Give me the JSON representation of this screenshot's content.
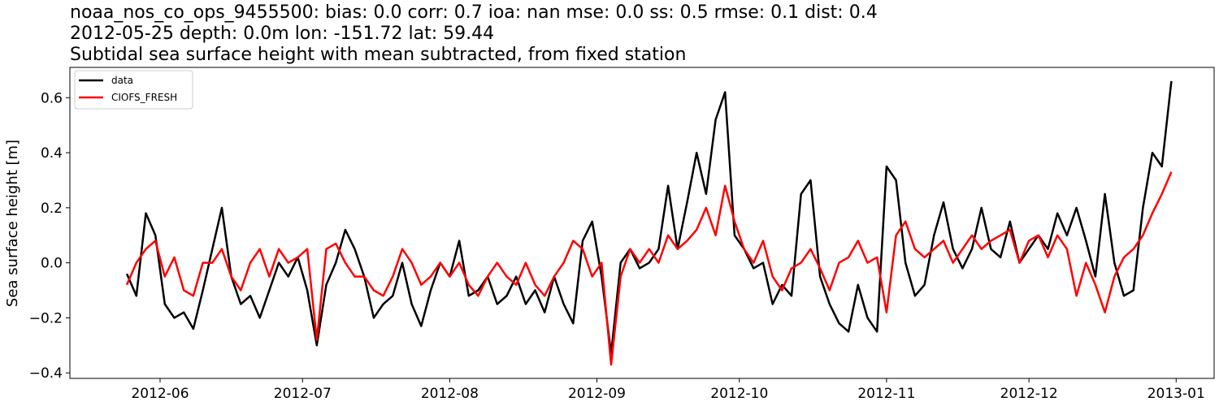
{
  "chart_data": {
    "type": "line",
    "title": [
      "noaa_nos_co_ops_9455500: bias: 0.0  corr: 0.7  ioa: nan  mse: 0.0  ss: 0.5  rmse: 0.1  dist: 0.4",
      "2012-05-25 depth: 0.0m lon: -151.72 lat: 59.44",
      "Subtidal sea surface height with mean subtracted, from fixed station"
    ],
    "xlabel": "",
    "ylabel": "Sea surface height [m]",
    "xlim": [
      "2012-05-13",
      "2013-01-09"
    ],
    "ylim": [
      -0.42,
      0.71
    ],
    "xticks": [
      "2012-06",
      "2012-07",
      "2012-08",
      "2012-09",
      "2012-10",
      "2012-11",
      "2012-12",
      "2013-01"
    ],
    "yticks": [
      -0.4,
      -0.2,
      0.0,
      0.2,
      0.4,
      0.6
    ],
    "ytick_labels": [
      "−0.4",
      "−0.2",
      "0.0",
      "0.2",
      "0.4",
      "0.6"
    ],
    "grid": false,
    "legend": "top-left",
    "series": [
      {
        "name": "data",
        "color": "#000000",
        "x": [
          "2012-05-25",
          "2012-05-27",
          "2012-05-29",
          "2012-05-31",
          "2012-06-02",
          "2012-06-04",
          "2012-06-06",
          "2012-06-08",
          "2012-06-10",
          "2012-06-12",
          "2012-06-14",
          "2012-06-16",
          "2012-06-18",
          "2012-06-20",
          "2012-06-22",
          "2012-06-24",
          "2012-06-26",
          "2012-06-28",
          "2012-06-30",
          "2012-07-02",
          "2012-07-04",
          "2012-07-06",
          "2012-07-08",
          "2012-07-10",
          "2012-07-12",
          "2012-07-14",
          "2012-07-16",
          "2012-07-18",
          "2012-07-20",
          "2012-07-22",
          "2012-07-24",
          "2012-07-26",
          "2012-07-28",
          "2012-07-30",
          "2012-08-01",
          "2012-08-03",
          "2012-08-05",
          "2012-08-07",
          "2012-08-09",
          "2012-08-11",
          "2012-08-13",
          "2012-08-15",
          "2012-08-17",
          "2012-08-19",
          "2012-08-21",
          "2012-08-23",
          "2012-08-25",
          "2012-08-27",
          "2012-08-29",
          "2012-08-31",
          "2012-09-02",
          "2012-09-04",
          "2012-09-06",
          "2012-09-08",
          "2012-09-10",
          "2012-09-12",
          "2012-09-14",
          "2012-09-16",
          "2012-09-18",
          "2012-09-20",
          "2012-09-22",
          "2012-09-24",
          "2012-09-26",
          "2012-09-28",
          "2012-09-30",
          "2012-10-02",
          "2012-10-04",
          "2012-10-06",
          "2012-10-08",
          "2012-10-10",
          "2012-10-12",
          "2012-10-14",
          "2012-10-16",
          "2012-10-18",
          "2012-10-20",
          "2012-10-22",
          "2012-10-24",
          "2012-10-26",
          "2012-10-28",
          "2012-10-30",
          "2012-11-01",
          "2012-11-03",
          "2012-11-05",
          "2012-11-07",
          "2012-11-09",
          "2012-11-11",
          "2012-11-13",
          "2012-11-15",
          "2012-11-17",
          "2012-11-19",
          "2012-11-21",
          "2012-11-23",
          "2012-11-25",
          "2012-11-27",
          "2012-11-29",
          "2012-12-01",
          "2012-12-03",
          "2012-12-05",
          "2012-12-07",
          "2012-12-09",
          "2012-12-11",
          "2012-12-13",
          "2012-12-15",
          "2012-12-17",
          "2012-12-19",
          "2012-12-21",
          "2012-12-23",
          "2012-12-25",
          "2012-12-27",
          "2012-12-29",
          "2012-12-31"
        ],
        "y": [
          -0.04,
          -0.12,
          0.18,
          0.1,
          -0.15,
          -0.2,
          -0.18,
          -0.24,
          -0.1,
          0.05,
          0.2,
          -0.05,
          -0.15,
          -0.12,
          -0.2,
          -0.1,
          0.0,
          -0.05,
          0.02,
          -0.1,
          -0.3,
          -0.08,
          0.0,
          0.12,
          0.05,
          -0.05,
          -0.2,
          -0.15,
          -0.12,
          0.0,
          -0.15,
          -0.23,
          -0.1,
          0.0,
          -0.05,
          0.08,
          -0.12,
          -0.1,
          -0.05,
          -0.15,
          -0.12,
          -0.05,
          -0.15,
          -0.1,
          -0.18,
          -0.05,
          -0.15,
          -0.22,
          0.08,
          0.15,
          -0.05,
          -0.33,
          0.0,
          0.05,
          -0.02,
          0.0,
          0.05,
          0.28,
          0.05,
          0.22,
          0.4,
          0.25,
          0.52,
          0.62,
          0.1,
          0.05,
          -0.02,
          0.0,
          -0.15,
          -0.08,
          -0.12,
          0.25,
          0.3,
          -0.05,
          -0.15,
          -0.22,
          -0.25,
          -0.08,
          -0.2,
          -0.25,
          0.35,
          0.3,
          0.0,
          -0.12,
          -0.08,
          0.1,
          0.22,
          0.05,
          -0.02,
          0.05,
          0.2,
          0.05,
          0.02,
          0.15,
          0.0,
          0.05,
          0.1,
          0.05,
          0.18,
          0.1,
          0.2,
          0.08,
          -0.05,
          0.25,
          0.0,
          -0.12,
          -0.1,
          0.2,
          0.4,
          0.35,
          0.66
        ]
      },
      {
        "name": "CIOFS_FRESH",
        "color": "#ff0000",
        "x": [
          "2012-05-25",
          "2012-05-27",
          "2012-05-29",
          "2012-05-31",
          "2012-06-02",
          "2012-06-04",
          "2012-06-06",
          "2012-06-08",
          "2012-06-10",
          "2012-06-12",
          "2012-06-14",
          "2012-06-16",
          "2012-06-18",
          "2012-06-20",
          "2012-06-22",
          "2012-06-24",
          "2012-06-26",
          "2012-06-28",
          "2012-06-30",
          "2012-07-02",
          "2012-07-04",
          "2012-07-06",
          "2012-07-08",
          "2012-07-10",
          "2012-07-12",
          "2012-07-14",
          "2012-07-16",
          "2012-07-18",
          "2012-07-20",
          "2012-07-22",
          "2012-07-24",
          "2012-07-26",
          "2012-07-28",
          "2012-07-30",
          "2012-08-01",
          "2012-08-03",
          "2012-08-05",
          "2012-08-07",
          "2012-08-09",
          "2012-08-11",
          "2012-08-13",
          "2012-08-15",
          "2012-08-17",
          "2012-08-19",
          "2012-08-21",
          "2012-08-23",
          "2012-08-25",
          "2012-08-27",
          "2012-08-29",
          "2012-08-31",
          "2012-09-02",
          "2012-09-04",
          "2012-09-06",
          "2012-09-08",
          "2012-09-10",
          "2012-09-12",
          "2012-09-14",
          "2012-09-16",
          "2012-09-18",
          "2012-09-20",
          "2012-09-22",
          "2012-09-24",
          "2012-09-26",
          "2012-09-28",
          "2012-09-30",
          "2012-10-02",
          "2012-10-04",
          "2012-10-06",
          "2012-10-08",
          "2012-10-10",
          "2012-10-12",
          "2012-10-14",
          "2012-10-16",
          "2012-10-18",
          "2012-10-20",
          "2012-10-22",
          "2012-10-24",
          "2012-10-26",
          "2012-10-28",
          "2012-10-30",
          "2012-11-01",
          "2012-11-03",
          "2012-11-05",
          "2012-11-07",
          "2012-11-09",
          "2012-11-11",
          "2012-11-13",
          "2012-11-15",
          "2012-11-17",
          "2012-11-19",
          "2012-11-21",
          "2012-11-23",
          "2012-11-25",
          "2012-11-27",
          "2012-11-29",
          "2012-12-01",
          "2012-12-03",
          "2012-12-05",
          "2012-12-07",
          "2012-12-09",
          "2012-12-11",
          "2012-12-13",
          "2012-12-15",
          "2012-12-17",
          "2012-12-19",
          "2012-12-21",
          "2012-12-23",
          "2012-12-25",
          "2012-12-27",
          "2012-12-29",
          "2012-12-31"
        ],
        "y": [
          -0.08,
          0.0,
          0.05,
          0.08,
          -0.05,
          0.02,
          -0.1,
          -0.12,
          0.0,
          0.0,
          0.05,
          -0.05,
          -0.1,
          0.0,
          0.05,
          -0.05,
          0.05,
          0.0,
          0.02,
          0.05,
          -0.28,
          0.05,
          0.07,
          0.0,
          -0.05,
          -0.05,
          -0.1,
          -0.12,
          -0.05,
          0.05,
          0.0,
          -0.08,
          -0.05,
          0.0,
          -0.05,
          0.0,
          -0.08,
          -0.12,
          -0.05,
          0.0,
          -0.05,
          -0.08,
          0.0,
          -0.08,
          -0.12,
          -0.05,
          0.0,
          0.08,
          0.05,
          -0.05,
          0.0,
          -0.37,
          -0.05,
          0.05,
          0.0,
          0.05,
          0.0,
          0.1,
          0.05,
          0.08,
          0.12,
          0.2,
          0.1,
          0.28,
          0.15,
          0.05,
          0.0,
          0.08,
          -0.05,
          -0.1,
          -0.02,
          0.0,
          0.05,
          -0.02,
          -0.1,
          0.0,
          0.02,
          0.08,
          0.0,
          0.02,
          -0.18,
          0.1,
          0.15,
          0.05,
          0.02,
          0.05,
          0.08,
          0.0,
          0.05,
          0.1,
          0.05,
          0.08,
          0.1,
          0.12,
          0.0,
          0.08,
          0.1,
          0.02,
          0.1,
          0.05,
          -0.12,
          0.0,
          -0.08,
          -0.18,
          -0.05,
          0.02,
          0.05,
          0.1,
          0.18,
          0.25,
          0.33
        ]
      }
    ]
  }
}
